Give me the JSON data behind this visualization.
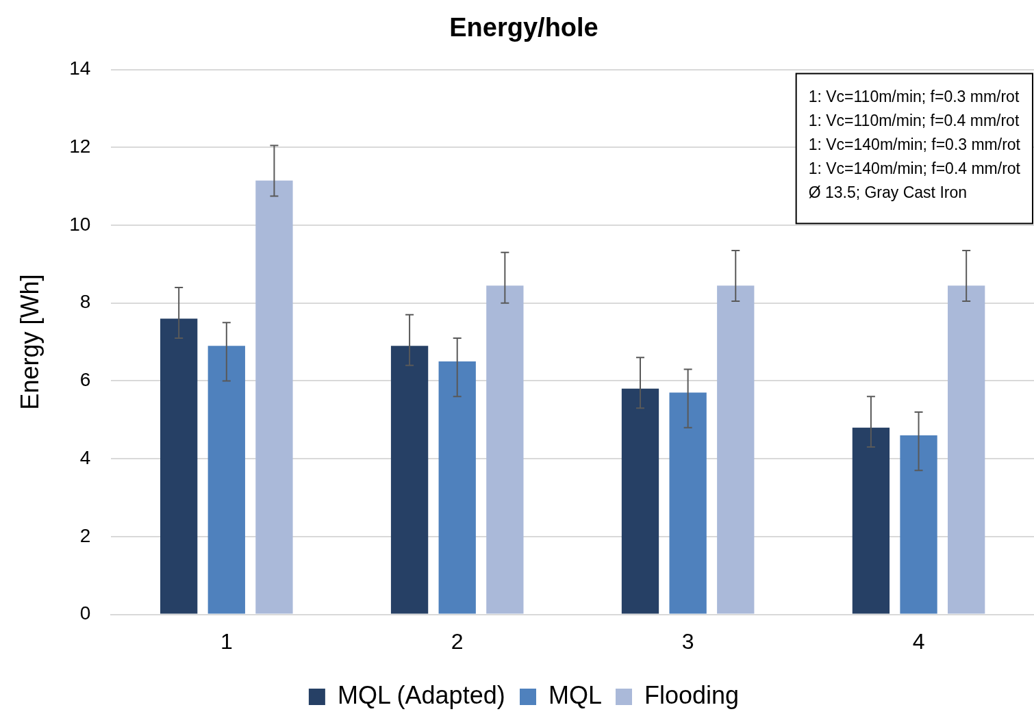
{
  "chart_data": {
    "type": "bar",
    "title": "Energy/hole",
    "ylabel": "Energy [Wh]",
    "categories": [
      "1",
      "2",
      "3",
      "4"
    ],
    "series": [
      {
        "name": "MQL (Adapted)",
        "color": "#264065",
        "values": [
          7.6,
          6.9,
          5.8,
          4.8
        ],
        "errors": [
          [
            7.1,
            8.4
          ],
          [
            6.4,
            7.7
          ],
          [
            5.3,
            6.6
          ],
          [
            4.3,
            5.6
          ]
        ]
      },
      {
        "name": "MQL",
        "color": "#4f81bd",
        "values": [
          6.9,
          6.5,
          5.7,
          4.6
        ],
        "errors": [
          [
            6.0,
            7.5
          ],
          [
            5.6,
            7.1
          ],
          [
            4.8,
            6.3
          ],
          [
            3.7,
            5.2
          ]
        ]
      },
      {
        "name": "Flooding",
        "color": "#aab9d9",
        "values": [
          11.15,
          8.45,
          8.45,
          8.45
        ],
        "errors": [
          [
            10.75,
            12.05
          ],
          [
            8.0,
            9.3
          ],
          [
            8.05,
            9.35
          ],
          [
            8.05,
            9.35
          ]
        ]
      }
    ],
    "ylim": [
      0,
      14
    ],
    "yticks": [
      0,
      2,
      4,
      6,
      8,
      10,
      12,
      14
    ],
    "grid": "y",
    "legend": "bottom",
    "annotations": [
      "1: Vc=110m/min; f=0.3 mm/rot",
      "1: Vc=110m/min; f=0.4 mm/rot",
      "1: Vc=140m/min; f=0.3 mm/rot",
      "1: Vc=140m/min; f=0.4 mm/rot",
      "Ø 13.5; Gray Cast Iron"
    ]
  }
}
